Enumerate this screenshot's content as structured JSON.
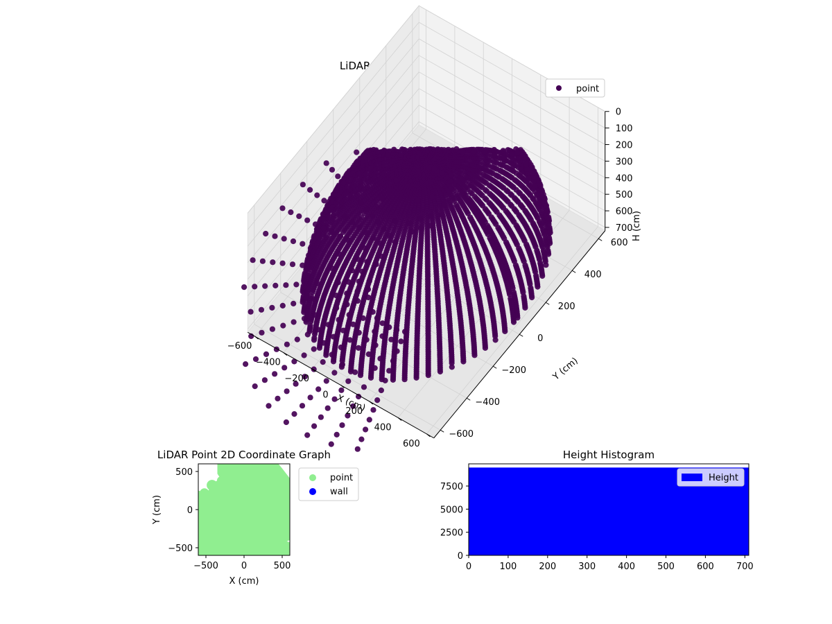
{
  "chart_data": [
    {
      "type": "scatter",
      "title": "LiDAR Point 3D Coordinate Graph",
      "xlabel": "X (cm)",
      "ylabel": "Y (cm)",
      "zlabel": "H (cm)",
      "x_ticks": [
        "−600",
        "−400",
        "−200",
        "0",
        "200",
        "400",
        "600"
      ],
      "y_ticks": [
        "−600",
        "−400",
        "−200",
        "0",
        "200",
        "400",
        "600"
      ],
      "z_ticks": [
        "0",
        "100",
        "200",
        "300",
        "400",
        "500",
        "600",
        "700"
      ],
      "xlim": [
        -650,
        650
      ],
      "ylim": [
        -650,
        650
      ],
      "zlim": [
        0,
        720
      ],
      "z_inverted": true,
      "legend": {
        "placement": "upper-right",
        "entries": [
          {
            "label": "point",
            "color": "#440154"
          }
        ]
      },
      "grid": true,
      "series": [
        {
          "name": "point",
          "color": "#440154"
        }
      ]
    },
    {
      "type": "scatter",
      "title": "LiDAR Point 2D Coordinate Graph",
      "xlabel": "X (cm)",
      "ylabel": "Y (cm)",
      "x_ticks": [
        "−500",
        "0",
        "500"
      ],
      "y_ticks": [
        "500",
        "0",
        "−500"
      ],
      "xlim": [
        -600,
        600
      ],
      "ylim": [
        -600,
        600
      ],
      "legend": {
        "placement": "outside-right",
        "entries": [
          {
            "label": "point",
            "color": "#90ee90"
          },
          {
            "label": "wall",
            "color": "#0000ff"
          }
        ]
      },
      "series": [
        {
          "name": "point",
          "color": "#90ee90"
        },
        {
          "name": "wall",
          "color": "#0000ff"
        }
      ]
    },
    {
      "type": "bar",
      "title": "Height Histogram",
      "x_ticks": [
        "0",
        "100",
        "200",
        "300",
        "400",
        "500",
        "600",
        "700"
      ],
      "y_ticks": [
        "0",
        "2500",
        "5000",
        "7500"
      ],
      "xlim": [
        0,
        710
      ],
      "ylim": [
        0,
        9900
      ],
      "bin_range": [
        0,
        710
      ],
      "bin_count_approx": 9500,
      "color": "#0000ff",
      "legend": {
        "placement": "upper-right",
        "entries": [
          {
            "label": "Height",
            "color": "#0000ff"
          }
        ]
      },
      "series": [
        {
          "name": "Height",
          "color": "#0000ff"
        }
      ]
    }
  ]
}
